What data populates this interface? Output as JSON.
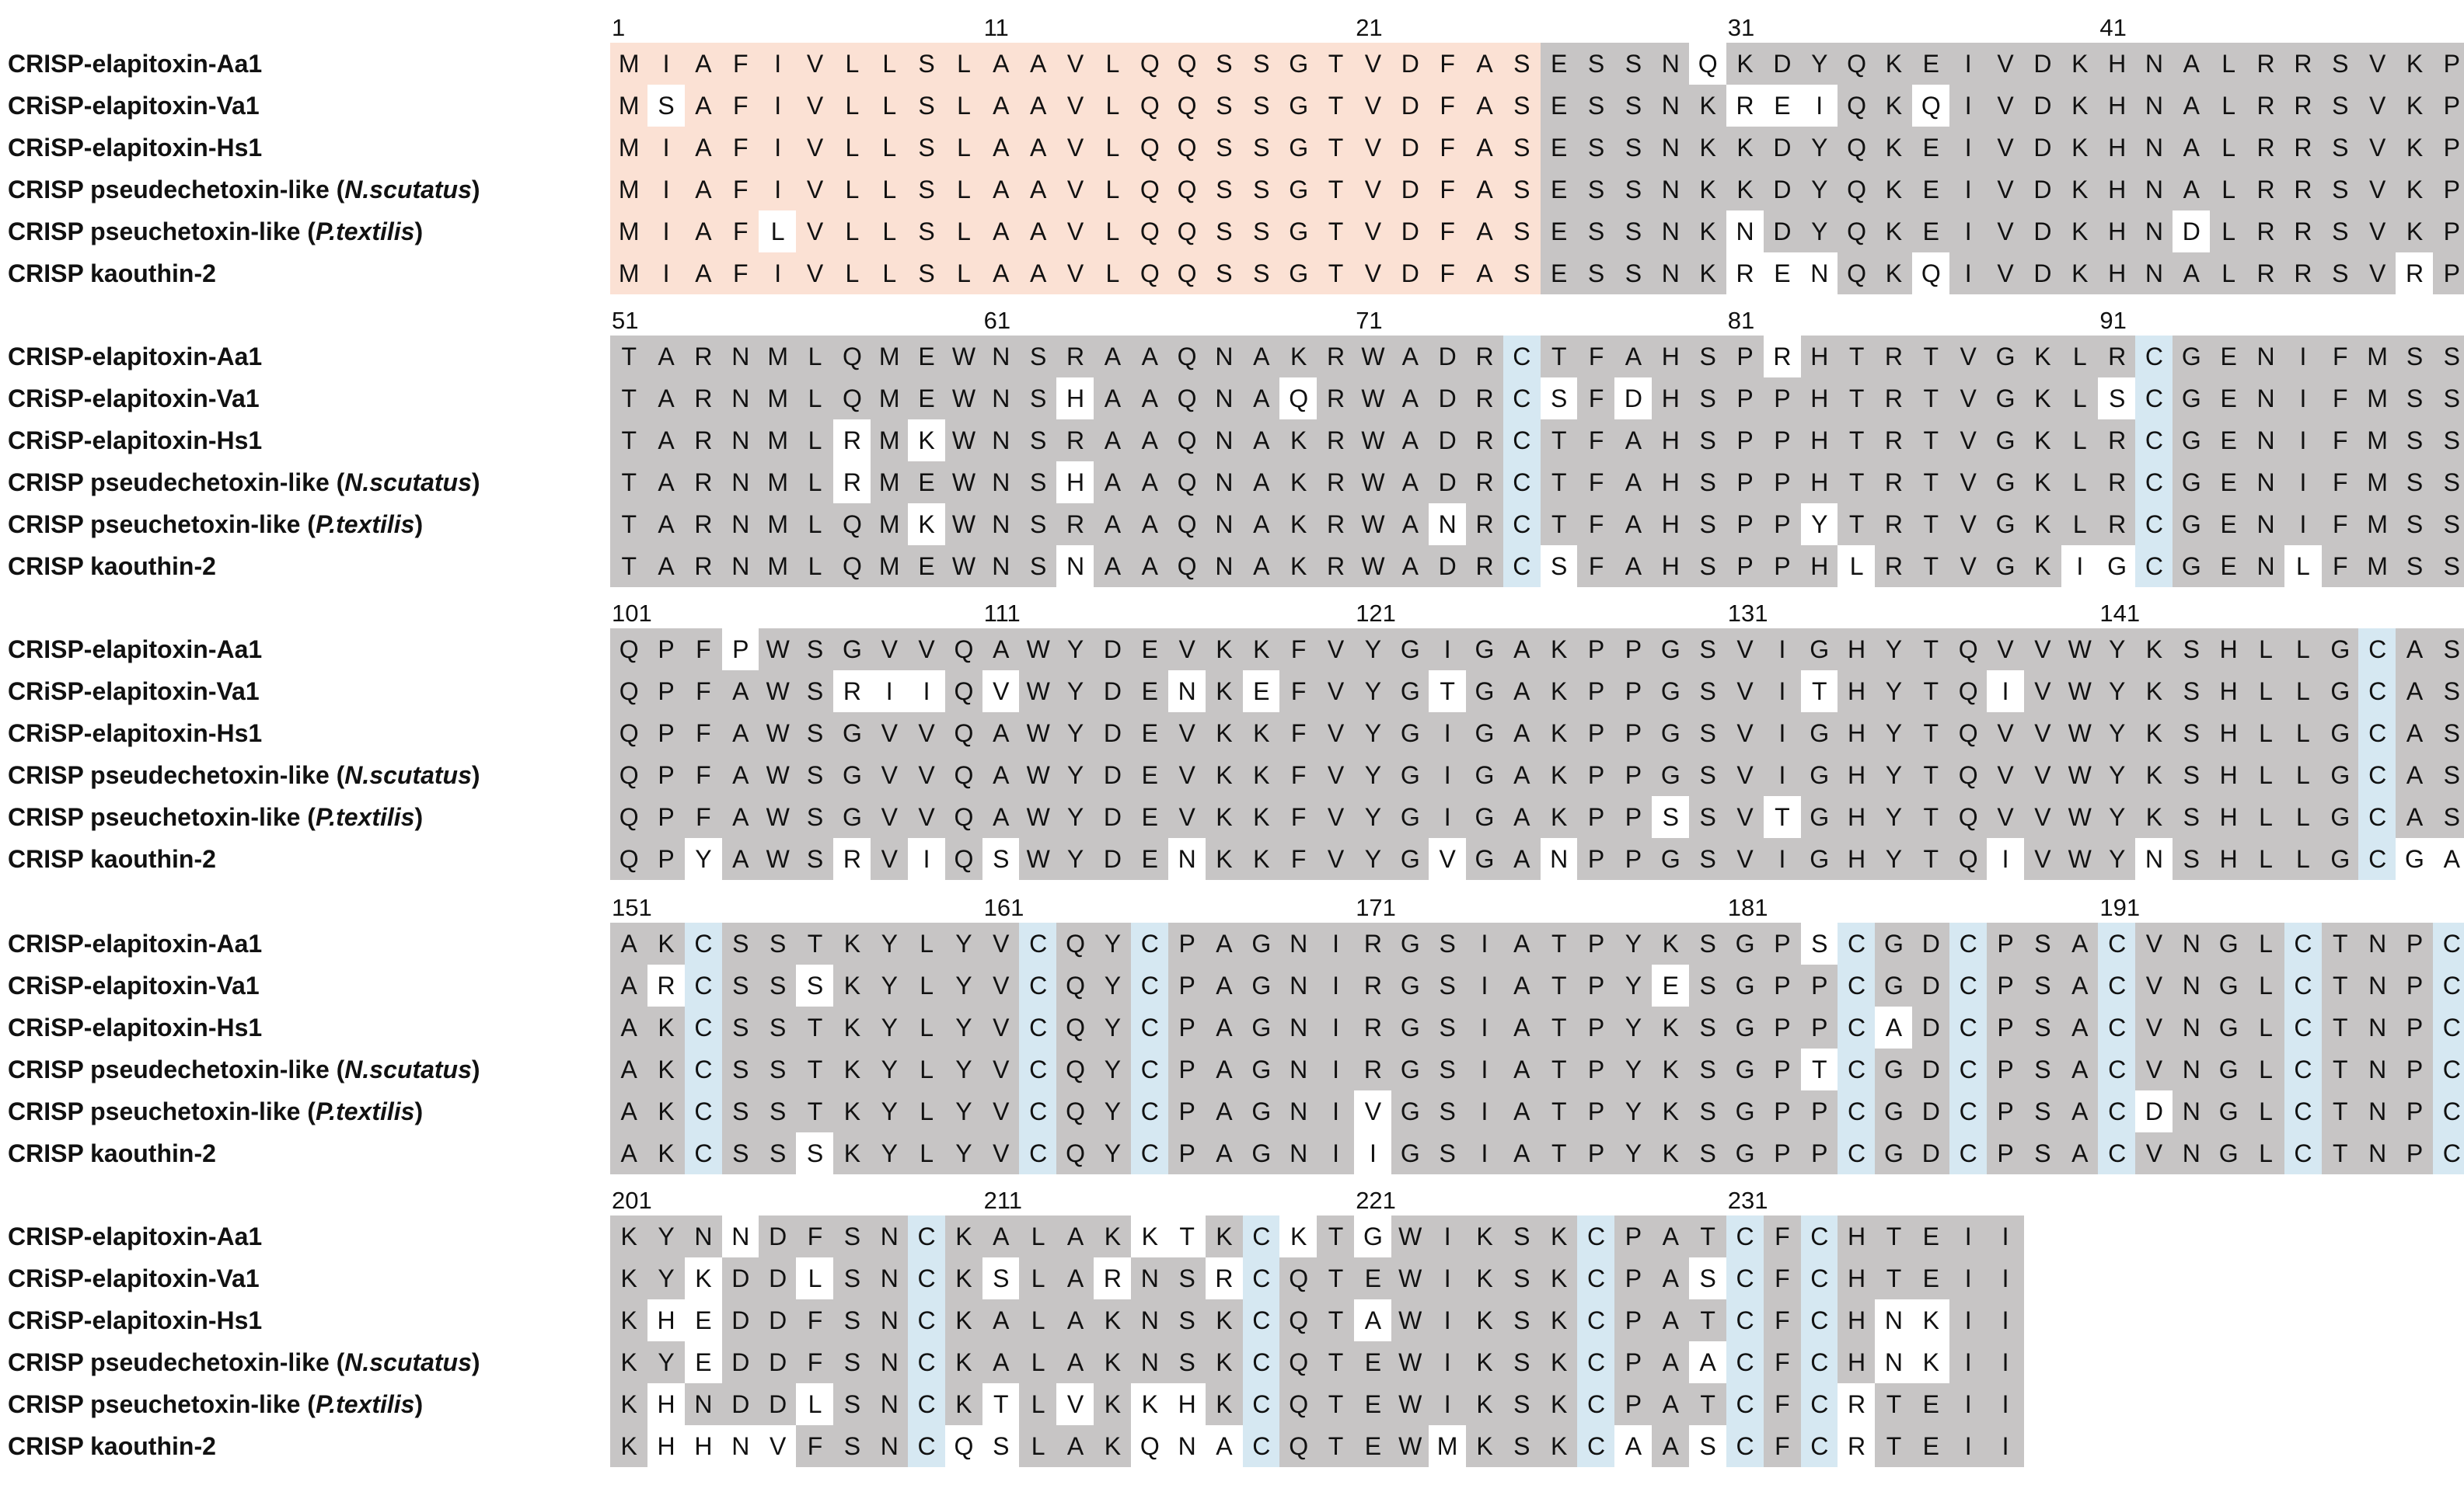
{
  "colors": {
    "signal_peptide": "#fbe1d4",
    "conserved": "#c7c5c5",
    "cysteine": "#d6e8f2",
    "variant": "#ffffff"
  },
  "signal_peptide_length": 25,
  "sequence_names": [
    {
      "text": "CRISP-elapitoxin-Aa1",
      "italic": ""
    },
    {
      "text": "CRiSP-elapitoxin-Va1",
      "italic": ""
    },
    {
      "text": "CRiSP-elapitoxin-Hs1",
      "italic": ""
    },
    {
      "text": "CRISP pseudechetoxin-like (",
      "italic": "N.scutatus",
      "suffix": ")"
    },
    {
      "text": "CRISP pseuchetoxin-like (",
      "italic": "P.textilis",
      "suffix": ")"
    },
    {
      "text": "CRISP kaouthin-2",
      "italic": ""
    }
  ],
  "blocks": [
    {
      "start": 1,
      "position_labels": [
        "1",
        "11",
        "21",
        "31",
        "41"
      ],
      "rows": [
        "MIAFIVLLSLAAVLQQSSGTVDFASESSNQKDYQKEIVDKHNALRRSVKP",
        "MSAFIVLLSLAAVLQQSSGTVDFASESSNKREIQKQIVDKHNALRRSVKP",
        "MIAFIVLLSLAAVLQQSSGTVDFASESSNKKDYQKEIVDKHNALRRSVKP",
        "MIAFIVLLSLAAVLQQSSGTVDFASESSNKKDYQKEIVDKHNALRRSVKP",
        "MIAFLVLLSLAAVLQQSSGTVDFASESSNKNDYQKEIVDKHNDLRRSVKP",
        "MIAFIVLLSLAAVLQQSSGTVDFASESSNKRENQKQIVDKHNALRRSVRP"
      ]
    },
    {
      "start": 51,
      "position_labels": [
        "51",
        "61",
        "71",
        "81",
        "91"
      ],
      "rows": [
        "TARNMLQMEWNSRAAQNAKRWADRCTFAHSPRHTRTVGKLRCGENIFMSS",
        "TARNMLQMEWNSHAAQNAQRWADRCSFDHSPPHTRTVGKLSCGENIFMSS",
        "TARNMLRMKWNSRAAQNAKRWADRCTFAHSPPHTRTVGKLRCGENIFMSS",
        "TARNMLRMEWNSHAAQNAKRWADRCTFAHSPPHTRTVGKLRCGENIFMSS",
        "TARNMLQMKWNSRAAQNAKRWANRCTFAHSPPYTRTVGKLRCGENIFMSS",
        "TARNMLQMEWNSNAAQNAKRWADRCSFAHSPPHLRTVGKIGCGENLFMSS"
      ]
    },
    {
      "start": 101,
      "position_labels": [
        "101",
        "111",
        "121",
        "131",
        "141"
      ],
      "rows": [
        "QPFPWSGVVQAWYDEVKKFVYGIGAKPPGSVIGHYTQVVWYKSHLLGCAS",
        "QPFAWSRIIQVWYDENKEFVYGTGAKPPGSVITHYTQIVWYKSHLLGCAS",
        "QPFAWSGVVQAWYDEVKKFVYGIGAKPPGSVIGHYTQVVWYKSHLLGCAS",
        "QPFAWSGVVQAWYDEVKKFVYGIGAKPPGSVIGHYTQVVWYKSHLLGCAS",
        "QPFAWSGVVQAWYDEVKKFVYGIGAKPPSSVTGHYTQVVWYKSHLLGCAS",
        "QPYAWSRVIQSWYDENKKFVYGVGANPPGSVIGHYTQIVWYNSHLLGCGA"
      ]
    },
    {
      "start": 151,
      "position_labels": [
        "151",
        "161",
        "171",
        "181",
        "191"
      ],
      "rows": [
        "AKCSSTKYLYVCQYCPAGNIRGSIATPYKSGPSCGDCPSACVNGLCTNPC",
        "ARCSSSKYLYVCQYCPAGNIRGSIATPYESGPPCGDCPSACVNGLCTNPC",
        "AKCSSTKYLYVCQYCPAGNIRGSIATPYKSGPPCADCPSACVNGLCTNPC",
        "AKCSSTKYLYVCQYCPAGNIRGSIATPYKSGPTCGDCPSACVNGLCTNPC",
        "AKCSSTKYLYVCQYCPAGNIVGSIATPYKSGPPCGDCPSACDNGLCTNPC",
        "AKCSSSKYLYVCQYCPAGNIIGSIATPYKSGPPCGDCPSACVNGLCTNPC"
      ]
    },
    {
      "start": 201,
      "position_labels": [
        "201",
        "211",
        "221",
        "231"
      ],
      "rows": [
        "KYNNDFSNCKALAKKTKCKTGWIKSKCPATCFCHTEII",
        "KYKDDLSNCKSLARNSRCQTEWIKSKCPASCFCHTEII",
        "KHEDDFSNCKALAKNSKCQTAWIKSKCPATCFCHNKII",
        "KYEDDFSNCKALAKNSKCQTEWIKSKCPAACFCHNKII",
        "KHNDDLSNCKTLVKKHKCQTEWIKSKCPATCFCRTEII",
        "KHHNVFSNCQSLAKQNACQTEWMKSKCAASCFCRTEII"
      ]
    }
  ]
}
